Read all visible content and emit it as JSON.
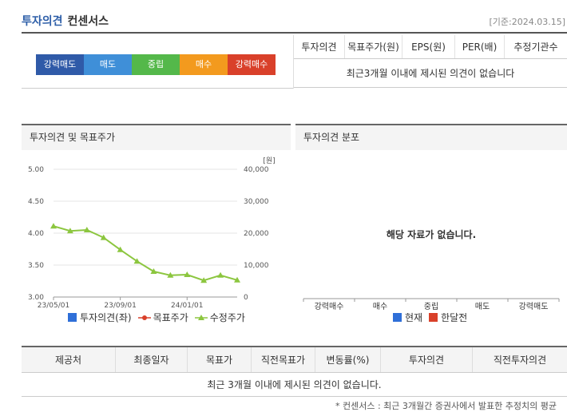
{
  "header": {
    "title": "투자의견",
    "subtitle": "컨센서스",
    "base_date": "[기준:2024.03.15]"
  },
  "opinion_scale": [
    {
      "label": "강력매도",
      "color": "#2f5aa8"
    },
    {
      "label": "매도",
      "color": "#3f8fd8"
    },
    {
      "label": "중립",
      "color": "#54b84a"
    },
    {
      "label": "매수",
      "color": "#f39a1e"
    },
    {
      "label": "강력매수",
      "color": "#d9402a"
    }
  ],
  "opinion_table": {
    "headers": [
      "투자의견",
      "목표주가(원)",
      "EPS(원)",
      "PER(배)",
      "추정기관수"
    ],
    "empty_message": "최근3개월 이내에 제시된 의견이 없습니다"
  },
  "left_panel": {
    "title": "투자의견 및 목표주가",
    "legend": [
      {
        "label": "투자의견(좌)",
        "color": "#2f6fd8"
      },
      {
        "label": "목표주가",
        "color": "#d9402a"
      },
      {
        "label": "수정주가",
        "color": "#8cc63f"
      }
    ]
  },
  "right_panel": {
    "title": "투자의견 분포",
    "empty_message": "해당 자료가 없습니다.",
    "categories": [
      "강력매수",
      "매수",
      "중립",
      "매도",
      "강력매도"
    ],
    "legend": [
      {
        "label": "현재",
        "color": "#2f6fd8"
      },
      {
        "label": "한달전",
        "color": "#d9402a"
      }
    ]
  },
  "bottom_table": {
    "headers": [
      "제공처",
      "최종일자",
      "목표가",
      "직전목표가",
      "변동률(%)",
      "투자의견",
      "직전투자의견"
    ],
    "empty_message": "최근 3개월 이내에 제시된 의견이 없습니다."
  },
  "footnote": "* 컨센서스 : 최근 3개월간 증권사에서 발표한 추정치의 평균",
  "chart_data": {
    "type": "line",
    "x": [
      "23/05/01",
      "23/06/01",
      "23/07/01",
      "23/08/01",
      "23/09/01",
      "23/10/01",
      "23/11/01",
      "23/12/01",
      "24/01/01",
      "24/02/01",
      "24/03/01",
      "24/03/15"
    ],
    "x_ticks": [
      "23/05/01",
      "23/09/01",
      "24/01/01"
    ],
    "y_left": {
      "ticks": [
        "5.00",
        "4.50",
        "4.00",
        "3.50",
        "3.00"
      ],
      "min": 3.0,
      "max": 5.0
    },
    "y_right": {
      "unit": "[원]",
      "ticks": [
        "40,000",
        "30,000",
        "20,000",
        "10,000",
        "0"
      ],
      "min": 0,
      "max": 40000
    },
    "series": [
      {
        "name": "수정주가",
        "axis": "right",
        "color": "#8cc63f",
        "values": [
          22200,
          20700,
          21000,
          18600,
          14800,
          11200,
          8000,
          6800,
          7000,
          5200,
          6800,
          5300
        ]
      }
    ]
  }
}
